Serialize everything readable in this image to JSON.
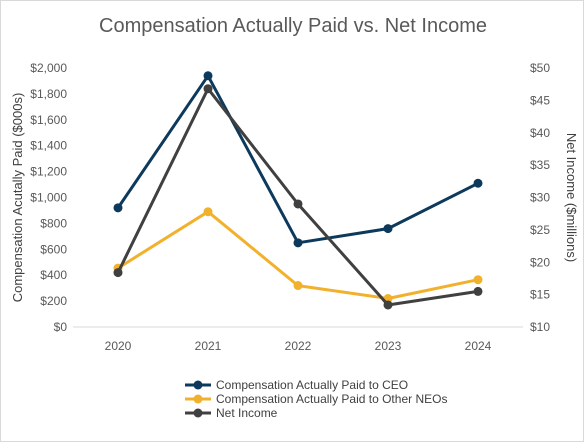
{
  "chart_data": {
    "type": "line",
    "title": "Compensation Actually Paid vs. Net Income",
    "categories": [
      "2020",
      "2021",
      "2022",
      "2023",
      "2024"
    ],
    "ylabel_left": "Compensation Acutally Paid ($000s)",
    "ylabel_right": "Net Income ($millions)",
    "ylim_left": [
      0,
      2000
    ],
    "ylim_right": [
      10,
      50
    ],
    "yticks_left": [
      "$0",
      "$200",
      "$400",
      "$600",
      "$800",
      "$1,000",
      "$1,200",
      "$1,400",
      "$1,600",
      "$1,800",
      "$2,000"
    ],
    "yticks_right": [
      "$10",
      "$15",
      "$20",
      "$25",
      "$30",
      "$35",
      "$40",
      "$45",
      "$50"
    ],
    "grid": false,
    "legend_position": "bottom",
    "series": [
      {
        "name": "Compensation Actually Paid to CEO",
        "axis": "left",
        "color": "#0d3a5c",
        "values": [
          920,
          1940,
          650,
          760,
          1110
        ]
      },
      {
        "name": "Compensation Actually Paid to Other NEOs",
        "axis": "left",
        "color": "#f2b12c",
        "values": [
          455,
          890,
          320,
          220,
          365
        ]
      },
      {
        "name": "Net Income",
        "axis": "right",
        "color": "#404040",
        "values": [
          18.4,
          46.8,
          29.0,
          13.4,
          15.5
        ]
      }
    ]
  }
}
